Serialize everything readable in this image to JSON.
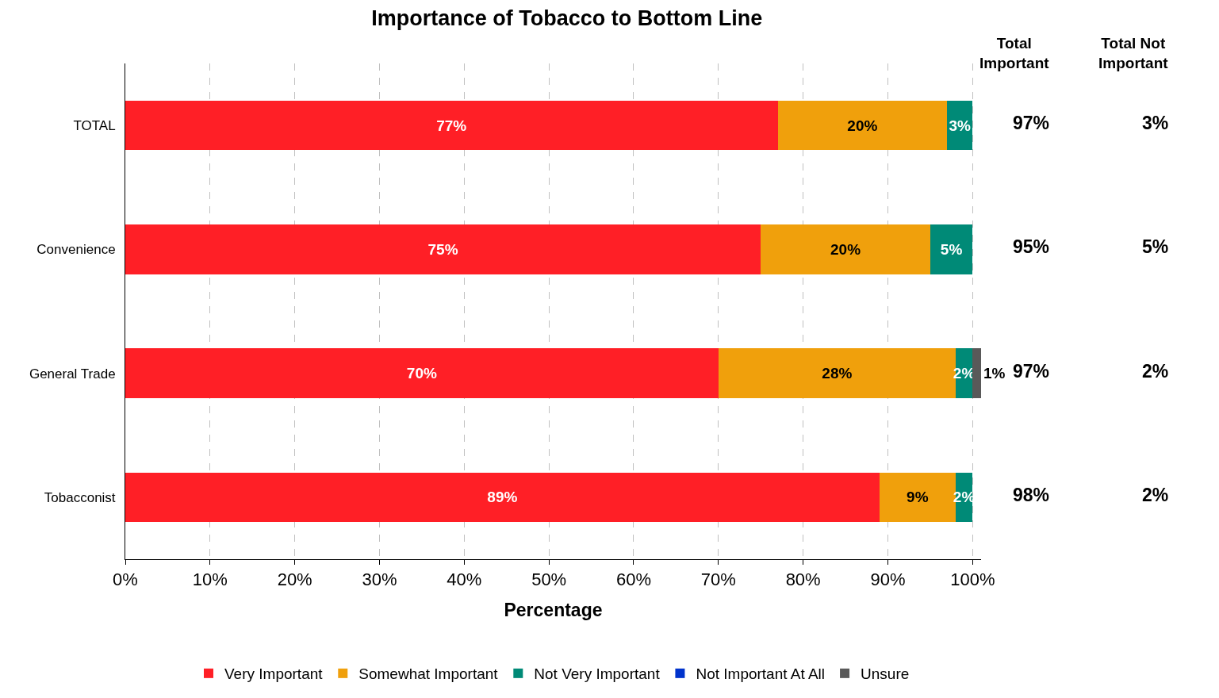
{
  "chart_data": {
    "type": "bar",
    "orientation": "horizontal",
    "stacked": true,
    "title": "Importance of Tobacco to Bottom Line",
    "xlabel": "Percentage",
    "categories": [
      "TOTAL",
      "Convenience",
      "General Trade",
      "Tobacconist"
    ],
    "series": [
      {
        "name": "Very Important",
        "color": "#ff1f26",
        "values": [
          77,
          75,
          70,
          89
        ],
        "value_labels": [
          "77%",
          "75%",
          "70%",
          "89%"
        ]
      },
      {
        "name": "Somewhat Important",
        "color": "#f0a00c",
        "values": [
          20,
          20,
          28,
          9
        ],
        "value_labels": [
          "20%",
          "20%",
          "28%",
          "9%"
        ]
      },
      {
        "name": "Not Very Important",
        "color": "#008a77",
        "values": [
          3,
          5,
          2,
          2
        ],
        "value_labels": [
          "3%",
          "5%",
          "2%",
          "2%"
        ]
      },
      {
        "name": "Not Important At All",
        "color": "#0033cc",
        "values": [
          null,
          null,
          null,
          null
        ]
      },
      {
        "name": "Unsure",
        "color": "#595959",
        "values": [
          null,
          null,
          1,
          null
        ],
        "value_labels": [
          null,
          null,
          "1%",
          null
        ]
      }
    ],
    "xlim": [
      0,
      101
    ],
    "xticks": [
      {
        "value": 0,
        "label": "0%"
      },
      {
        "value": 10,
        "label": "10%"
      },
      {
        "value": 20,
        "label": "20%"
      },
      {
        "value": 30,
        "label": "30%"
      },
      {
        "value": 40,
        "label": "40%"
      },
      {
        "value": 50,
        "label": "50%"
      },
      {
        "value": 60,
        "label": "60%"
      },
      {
        "value": 70,
        "label": "70%"
      },
      {
        "value": 80,
        "label": "80%"
      },
      {
        "value": 90,
        "label": "90%"
      },
      {
        "value": 100,
        "label": "100%"
      }
    ],
    "grid": "x",
    "legend": "bottom",
    "annotations": [
      "Total Important",
      "Total Not Important",
      "97%",
      "3%",
      "95%",
      "5%",
      "97%",
      "2%",
      "98%",
      "2%"
    ]
  }
}
